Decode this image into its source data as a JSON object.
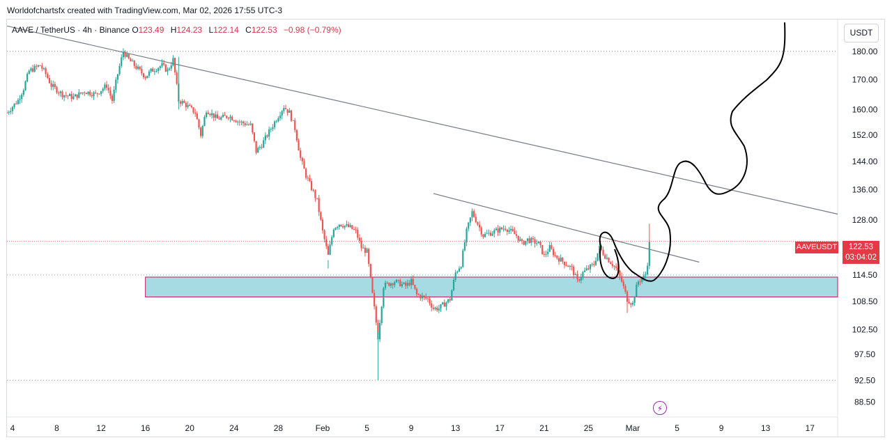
{
  "watermark": "Worldofchartsfx created with TradingView.com, Mar 02, 2026 17:55 UTC-3",
  "header": {
    "symbol_text": "AAVE / TetherUS · 4h · Binance",
    "open_label": "O",
    "open": "123.49",
    "high_label": "H",
    "high": "124.23",
    "low_label": "L",
    "low": "122.14",
    "close_label": "C",
    "close": "122.53",
    "change": "−0.98 (−0.79%)"
  },
  "currency_button": "USDT",
  "price_label": {
    "symbol": "AAVEUSDT",
    "price": "122.53",
    "countdown": "03:04:02"
  },
  "icons": {
    "bolt": "lightning-bolt-icon"
  },
  "colors": {
    "up": "#26a69a",
    "down": "#ef5350",
    "zone": "#a6dbe3",
    "zone_border": "#c2185b",
    "trendline": "#787b86",
    "drawing": "#000000",
    "price_tag": "#e53945"
  },
  "chart_data": {
    "type": "candlestick",
    "timeframe": "4h",
    "y_ticks": [
      180.0,
      170.0,
      160.0,
      152.0,
      144.0,
      136.0,
      128.0,
      114.5,
      108.5,
      102.5,
      97.5,
      92.5,
      88.5
    ],
    "y_tick_labels": [
      "180.00",
      "170.00",
      "160.00",
      "152.00",
      "144.00",
      "136.00",
      "128.00",
      "114.50",
      "108.50",
      "102.50",
      "97.50",
      "92.50",
      "88.50"
    ],
    "x_ticks": [
      "4",
      "8",
      "12",
      "16",
      "20",
      "24",
      "28",
      "Feb",
      "5",
      "9",
      "13",
      "17",
      "21",
      "25",
      "Mar",
      "5",
      "9",
      "13",
      "17"
    ],
    "x_tick_dates": [
      "2026-01-04",
      "2026-01-08",
      "2026-01-12",
      "2026-01-16",
      "2026-01-20",
      "2026-01-24",
      "2026-01-28",
      "2026-02-01",
      "2026-02-05",
      "2026-02-09",
      "2026-02-13",
      "2026-02-17",
      "2026-02-21",
      "2026-02-25",
      "2026-03-01",
      "2026-03-05",
      "2026-03-09",
      "2026-03-13",
      "2026-03-17"
    ],
    "x_range": [
      "2026-01-03T12:00",
      "2026-03-19T12:00"
    ],
    "y_range": [
      86.0,
      192.0
    ],
    "log_scale": true,
    "dotted_levels": [
      180.0,
      114.5,
      92.5
    ],
    "path": [
      [
        "2026-01-03T12:00",
        159
      ],
      [
        "2026-01-04T12:00",
        163
      ],
      [
        "2026-01-05T00:00",
        167
      ],
      [
        "2026-01-05T12:00",
        173
      ],
      [
        "2026-01-06T12:00",
        175
      ],
      [
        "2026-01-07T00:00",
        172
      ],
      [
        "2026-01-07T12:00",
        168
      ],
      [
        "2026-01-08T12:00",
        165
      ],
      [
        "2026-01-09T12:00",
        164
      ],
      [
        "2026-01-10T12:00",
        166
      ],
      [
        "2026-01-11T12:00",
        165
      ],
      [
        "2026-01-12T12:00",
        168
      ],
      [
        "2026-01-13T00:00",
        163
      ],
      [
        "2026-01-13T12:00",
        172
      ],
      [
        "2026-01-14T00:00",
        180
      ],
      [
        "2026-01-14T12:00",
        177
      ],
      [
        "2026-01-15T12:00",
        173
      ],
      [
        "2026-01-16T00:00",
        171
      ],
      [
        "2026-01-16T12:00",
        173
      ],
      [
        "2026-01-17T12:00",
        175
      ],
      [
        "2026-01-18T00:00",
        173
      ],
      [
        "2026-01-18T12:00",
        177
      ],
      [
        "2026-01-19T00:00",
        163
      ],
      [
        "2026-01-19T12:00",
        162
      ],
      [
        "2026-01-20T12:00",
        159
      ],
      [
        "2026-01-21T00:00",
        152
      ],
      [
        "2026-01-21T12:00",
        160
      ],
      [
        "2026-01-22T12:00",
        157
      ],
      [
        "2026-01-23T12:00",
        158
      ],
      [
        "2026-01-24T12:00",
        156
      ],
      [
        "2026-01-25T12:00",
        155
      ],
      [
        "2026-01-26T00:00",
        147
      ],
      [
        "2026-01-26T12:00",
        149
      ],
      [
        "2026-01-27T12:00",
        155
      ],
      [
        "2026-01-28T12:00",
        161
      ],
      [
        "2026-01-29T00:00",
        159
      ],
      [
        "2026-01-29T12:00",
        154
      ],
      [
        "2026-01-30T00:00",
        145
      ],
      [
        "2026-01-30T12:00",
        140
      ],
      [
        "2026-01-31T12:00",
        133
      ],
      [
        "2026-02-01T00:00",
        125
      ],
      [
        "2026-02-01T12:00",
        119
      ],
      [
        "2026-02-02T00:00",
        126
      ],
      [
        "2026-02-02T12:00",
        127
      ],
      [
        "2026-02-03T12:00",
        126
      ],
      [
        "2026-02-04T00:00",
        125
      ],
      [
        "2026-02-04T12:00",
        121
      ],
      [
        "2026-02-05T00:00",
        120
      ],
      [
        "2026-02-05T12:00",
        110
      ],
      [
        "2026-02-06T00:00",
        101
      ],
      [
        "2026-02-06T06:00",
        106
      ],
      [
        "2026-02-06T12:00",
        112
      ],
      [
        "2026-02-07T12:00",
        113
      ],
      [
        "2026-02-08T12:00",
        112
      ],
      [
        "2026-02-09T00:00",
        113
      ],
      [
        "2026-02-09T12:00",
        110
      ],
      [
        "2026-02-10T12:00",
        109
      ],
      [
        "2026-02-11T00:00",
        107
      ],
      [
        "2026-02-11T12:00",
        107
      ],
      [
        "2026-02-12T12:00",
        109
      ],
      [
        "2026-02-13T00:00",
        115
      ],
      [
        "2026-02-13T12:00",
        117
      ],
      [
        "2026-02-14T00:00",
        125
      ],
      [
        "2026-02-14T12:00",
        130
      ],
      [
        "2026-02-15T00:00",
        127
      ],
      [
        "2026-02-15T12:00",
        124
      ],
      [
        "2026-02-16T12:00",
        125
      ],
      [
        "2026-02-17T12:00",
        126
      ],
      [
        "2026-02-18T12:00",
        124
      ],
      [
        "2026-02-19T00:00",
        122
      ],
      [
        "2026-02-19T12:00",
        123
      ],
      [
        "2026-02-20T12:00",
        122
      ],
      [
        "2026-02-21T00:00",
        119
      ],
      [
        "2026-02-21T12:00",
        121
      ],
      [
        "2026-02-22T00:00",
        119
      ],
      [
        "2026-02-22T12:00",
        118
      ],
      [
        "2026-02-23T12:00",
        116
      ],
      [
        "2026-02-24T00:00",
        113
      ],
      [
        "2026-02-24T12:00",
        115
      ],
      [
        "2026-02-25T12:00",
        117
      ],
      [
        "2026-02-26T00:00",
        121
      ],
      [
        "2026-02-26T12:00",
        119
      ],
      [
        "2026-02-27T12:00",
        116
      ],
      [
        "2026-02-28T00:00",
        113
      ],
      [
        "2026-02-28T12:00",
        109
      ],
      [
        "2026-03-01T00:00",
        108
      ],
      [
        "2026-03-01T06:00",
        111
      ],
      [
        "2026-03-01T12:00",
        113
      ],
      [
        "2026-03-02T00:00",
        114
      ],
      [
        "2026-03-02T06:00",
        115
      ],
      [
        "2026-03-02T12:00",
        122
      ]
    ],
    "spikes": [
      [
        "2026-01-19T00:00",
        178,
        160
      ],
      [
        "2026-02-01T12:00",
        118,
        116
      ],
      [
        "2026-02-06T00:00",
        102,
        92.5
      ],
      [
        "2026-02-28T12:00",
        111,
        106
      ],
      [
        "2026-03-02T12:00",
        127,
        121
      ]
    ],
    "current_price": 122.53,
    "zone": {
      "from": "2026-01-16T00:00",
      "to": "2026-03-19T12:00",
      "top": 114.0,
      "bottom": 109.5
    },
    "trendlines": [
      [
        [
          "2026-01-03T12:00",
          189.5
        ],
        [
          "2026-03-19T12:00",
          129.5
        ]
      ],
      [
        [
          "2026-02-11T00:00",
          135.0
        ],
        [
          "2026-03-07T00:00",
          117.5
        ]
      ]
    ]
  }
}
